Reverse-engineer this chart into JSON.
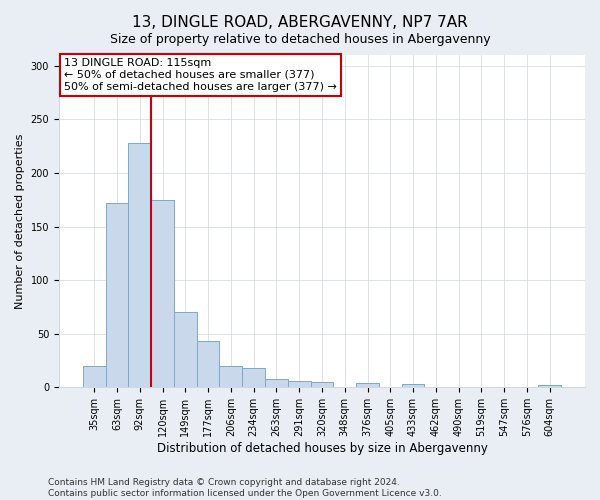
{
  "title1": "13, DINGLE ROAD, ABERGAVENNY, NP7 7AR",
  "title2": "Size of property relative to detached houses in Abergavenny",
  "xlabel": "Distribution of detached houses by size in Abergavenny",
  "ylabel": "Number of detached properties",
  "categories": [
    "35sqm",
    "63sqm",
    "92sqm",
    "120sqm",
    "149sqm",
    "177sqm",
    "206sqm",
    "234sqm",
    "263sqm",
    "291sqm",
    "320sqm",
    "348sqm",
    "376sqm",
    "405sqm",
    "433sqm",
    "462sqm",
    "490sqm",
    "519sqm",
    "547sqm",
    "576sqm",
    "604sqm"
  ],
  "values": [
    20,
    172,
    228,
    175,
    70,
    43,
    20,
    18,
    8,
    6,
    5,
    0,
    4,
    0,
    3,
    0,
    0,
    0,
    0,
    0,
    2
  ],
  "bar_color": "#c9d9eb",
  "bar_edge_color": "#7aaac8",
  "vline_color": "#cc0000",
  "vline_x_idx": 3,
  "annotation_line1": "13 DINGLE ROAD: 115sqm",
  "annotation_line2": "← 50% of detached houses are smaller (377)",
  "annotation_line3": "50% of semi-detached houses are larger (377) →",
  "ylim": [
    0,
    310
  ],
  "yticks": [
    0,
    50,
    100,
    150,
    200,
    250,
    300
  ],
  "footer1": "Contains HM Land Registry data © Crown copyright and database right 2024.",
  "footer2": "Contains public sector information licensed under the Open Government Licence v3.0.",
  "background_color": "#e8eef4",
  "plot_background": "#ffffff",
  "title1_fontsize": 11,
  "title2_fontsize": 9,
  "xlabel_fontsize": 8.5,
  "ylabel_fontsize": 8,
  "tick_fontsize": 7,
  "annot_fontsize": 8,
  "footer_fontsize": 6.5
}
